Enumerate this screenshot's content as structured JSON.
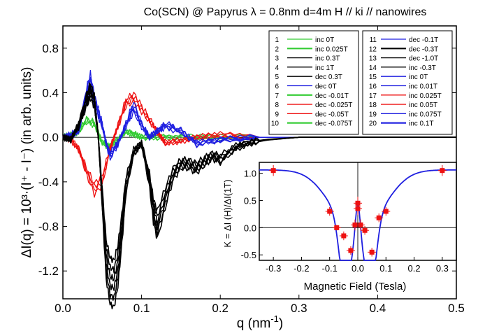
{
  "chart_data": [
    {
      "type": "line",
      "title": "Co(SCN) @ Papyrus λ = 0.8nm d=4m  H // ki // nanowires",
      "xlabel_main": "q (nm",
      "xlabel_exp": "-1",
      "xlabel_close": ")",
      "ylabel": "ΔI(q) = 10³·(I⁺ - I⁻) (in arb. units)",
      "xlim": [
        0.0,
        0.5
      ],
      "ylim": [
        -1.45,
        1.0
      ],
      "xticks": [
        0.0,
        0.1,
        0.2,
        0.3,
        0.4,
        0.5
      ],
      "xtick_labels": [
        "0.0",
        "0.1",
        "0.2",
        "0.3",
        "0.4",
        "0.5"
      ],
      "yticks": [
        0.8,
        0.4,
        0.0,
        -0.4,
        -0.8,
        -1.2
      ],
      "ytick_labels": [
        "0.8",
        "0.4",
        "0.0",
        "-0.4",
        "-0.8",
        "-1.2"
      ],
      "legend_placement": "top-right (two boxes)",
      "series": [
        {
          "id": "1",
          "name": "inc 0T",
          "color": "#33cc33",
          "group": "green"
        },
        {
          "id": "2",
          "name": "inc 0.025T",
          "color": "#33cc33",
          "group": "green"
        },
        {
          "id": "3",
          "name": "inc 0.3T",
          "color": "#000000",
          "group": "black"
        },
        {
          "id": "4",
          "name": "inc 1T",
          "color": "#000000",
          "group": "black"
        },
        {
          "id": "5",
          "name": "dec 0.3T",
          "color": "#000000",
          "group": "black"
        },
        {
          "id": "6",
          "name": "dec 0T",
          "color": "#1f1fe0",
          "group": "blue"
        },
        {
          "id": "7",
          "name": "dec -0.01T",
          "color": "#33cc33",
          "group": "green"
        },
        {
          "id": "8",
          "name": "dec -0.025T",
          "color": "#ee1111",
          "group": "red"
        },
        {
          "id": "9",
          "name": "dec -0.05T",
          "color": "#ee1111",
          "group": "red"
        },
        {
          "id": "10",
          "name": "dec -0.075T",
          "color": "#33cc33",
          "group": "green"
        },
        {
          "id": "11",
          "name": "dec -0.1T",
          "color": "#1f1fe0",
          "group": "blue"
        },
        {
          "id": "12",
          "name": "dec -0.3T",
          "color": "#000000",
          "group": "black"
        },
        {
          "id": "13",
          "name": "dec -1.0T",
          "color": "#000000",
          "group": "black"
        },
        {
          "id": "14",
          "name": "inc -0.3T",
          "color": "#000000",
          "group": "black"
        },
        {
          "id": "15",
          "name": "inc 0T",
          "color": "#1f1fe0",
          "group": "blue"
        },
        {
          "id": "16",
          "name": "inc 0.01T",
          "color": "#1f1fe0",
          "group": "blue"
        },
        {
          "id": "17",
          "name": "inc 0.025T",
          "color": "#ee1111",
          "group": "red"
        },
        {
          "id": "18",
          "name": "inc 0.05T",
          "color": "#ee1111",
          "group": "red"
        },
        {
          "id": "19",
          "name": "inc 0.075T",
          "color": "#1f1fe0",
          "group": "blue"
        },
        {
          "id": "20",
          "name": "inc 0.1T",
          "color": "#1f1fe0",
          "group": "blue"
        }
      ],
      "group_profiles": {
        "black": {
          "x": [
            0.0,
            0.01,
            0.02,
            0.03,
            0.035,
            0.04,
            0.045,
            0.05,
            0.055,
            0.06,
            0.065,
            0.07,
            0.075,
            0.08,
            0.09,
            0.1,
            0.11,
            0.115,
            0.12,
            0.13,
            0.14,
            0.15,
            0.16,
            0.17,
            0.18,
            0.19,
            0.2,
            0.22,
            0.24,
            0.26,
            0.28,
            0.3,
            0.35,
            0.4,
            0.5
          ],
          "y": [
            0.0,
            -0.02,
            0.1,
            0.3,
            0.38,
            0.3,
            0.0,
            -0.5,
            -1.0,
            -1.18,
            -1.2,
            -1.05,
            -0.75,
            -0.4,
            -0.12,
            -0.05,
            -0.35,
            -0.6,
            -0.72,
            -0.5,
            -0.3,
            -0.22,
            -0.22,
            -0.25,
            -0.2,
            -0.15,
            -0.18,
            -0.08,
            -0.04,
            -0.02,
            -0.01,
            0.0,
            0.0,
            0.0,
            0.0
          ]
        },
        "blue": {
          "x": [
            0.0,
            0.01,
            0.02,
            0.03,
            0.035,
            0.04,
            0.045,
            0.05,
            0.055,
            0.06,
            0.07,
            0.08,
            0.09,
            0.1,
            0.11,
            0.12,
            0.13,
            0.15,
            0.17,
            0.2,
            0.25,
            0.3,
            0.5
          ],
          "y": [
            0.0,
            0.02,
            0.05,
            0.35,
            0.45,
            0.3,
            0.2,
            0.1,
            -0.05,
            -0.15,
            -0.05,
            0.1,
            0.25,
            0.1,
            0.0,
            0.05,
            0.1,
            0.05,
            -0.05,
            -0.02,
            0.0,
            0.0,
            0.0
          ]
        },
        "red": {
          "x": [
            0.0,
            0.01,
            0.02,
            0.03,
            0.04,
            0.05,
            0.06,
            0.07,
            0.08,
            0.09,
            0.1,
            0.11,
            0.12,
            0.13,
            0.15,
            0.17,
            0.2,
            0.25,
            0.3,
            0.5
          ],
          "y": [
            0.0,
            -0.02,
            -0.1,
            -0.3,
            -0.45,
            -0.38,
            -0.1,
            0.1,
            0.3,
            0.35,
            0.25,
            0.15,
            0.05,
            -0.05,
            -0.03,
            0.0,
            0.02,
            0.0,
            0.0,
            0.0
          ]
        },
        "green": {
          "x": [
            0.0,
            0.01,
            0.02,
            0.03,
            0.04,
            0.05,
            0.06,
            0.07,
            0.08,
            0.09,
            0.1,
            0.12,
            0.15,
            0.2,
            0.3,
            0.5
          ],
          "y": [
            0.0,
            0.02,
            0.05,
            0.15,
            0.12,
            -0.05,
            -0.08,
            -0.02,
            0.05,
            0.03,
            0.0,
            0.0,
            0.0,
            0.0,
            0.0,
            0.0
          ]
        }
      }
    },
    {
      "type": "scatter",
      "title": "",
      "xlabel": "Magnetic Field (Tesla)",
      "ylabel": "K = ΔI (H)/ΔI(1T)",
      "xlim": [
        -0.35,
        0.35
      ],
      "ylim": [
        -0.6,
        1.2
      ],
      "xticks": [
        -0.3,
        -0.2,
        -0.1,
        0.0,
        0.1,
        0.2,
        0.3
      ],
      "xtick_labels": [
        "-0.3",
        "-0.2",
        "-0.1",
        "0.0",
        "0.1",
        "0.2",
        "0.3"
      ],
      "yticks": [
        -0.5,
        0.0,
        0.5,
        1.0
      ],
      "ytick_labels": [
        "-0.5",
        "0.0",
        "0.5",
        "1.0"
      ],
      "points": {
        "x": [
          -0.3,
          -0.1,
          -0.075,
          -0.05,
          -0.025,
          -0.01,
          0.0,
          0.0,
          0.01,
          0.025,
          0.05,
          0.075,
          0.1,
          0.3
        ],
        "y": [
          1.05,
          0.3,
          0.0,
          -0.15,
          -0.42,
          0.05,
          0.45,
          0.35,
          0.05,
          -0.05,
          -0.45,
          0.18,
          0.3,
          1.05
        ],
        "err": [
          0.1,
          0.08,
          0.05,
          0.08,
          0.08,
          0.1,
          0.12,
          0.12,
          0.1,
          0.08,
          0.08,
          0.08,
          0.08,
          0.1
        ]
      },
      "fit": {
        "color": "#1f1fe0"
      },
      "marker_color": "#ee1111"
    }
  ]
}
